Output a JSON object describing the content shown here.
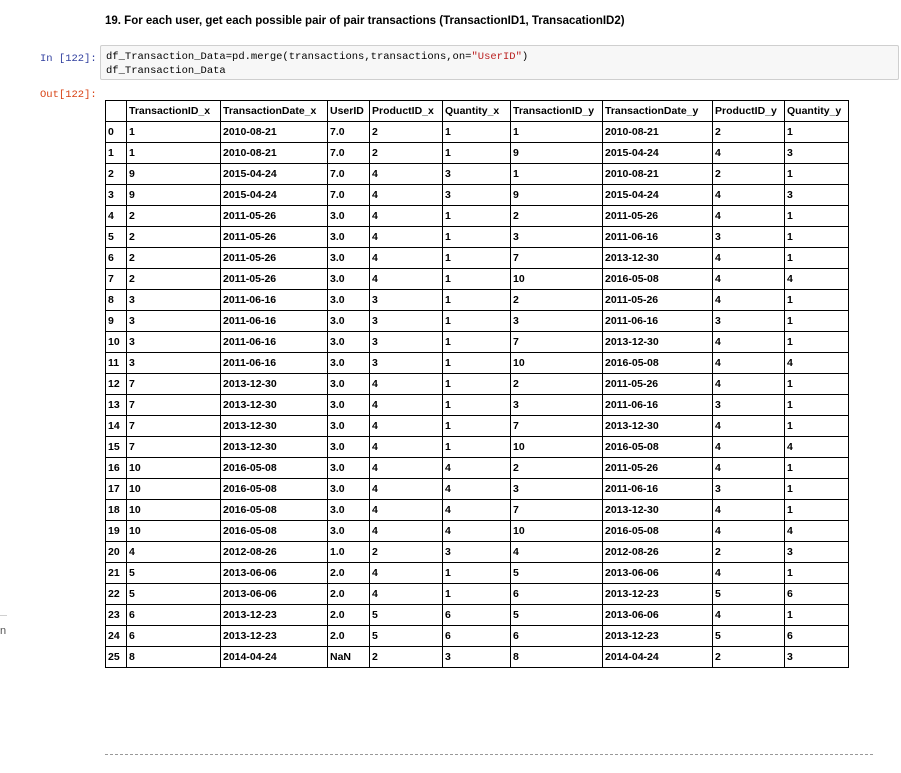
{
  "heading": "19. For each user, get each possible pair of pair transactions (TransactionID1, TransacationID2)",
  "in_prompt": "In [122]:",
  "out_prompt": "Out[122]:",
  "code": {
    "line1_pre": "df_Transaction_Data=pd.merge(transactions,transactions,on=",
    "line1_str": "\"UserID\"",
    "line1_post": ")",
    "line2": "df_Transaction_Data"
  },
  "edge_text": "n",
  "table": {
    "columns": [
      "TransactionID_x",
      "TransactionDate_x",
      "UserID",
      "ProductID_x",
      "Quantity_x",
      "TransactionID_y",
      "TransactionDate_y",
      "ProductID_y",
      "Quantity_y"
    ],
    "rows": [
      {
        "idx": "0",
        "cells": [
          "1",
          "2010-08-21",
          "7.0",
          "2",
          "1",
          "1",
          "2010-08-21",
          "2",
          "1"
        ]
      },
      {
        "idx": "1",
        "cells": [
          "1",
          "2010-08-21",
          "7.0",
          "2",
          "1",
          "9",
          "2015-04-24",
          "4",
          "3"
        ]
      },
      {
        "idx": "2",
        "cells": [
          "9",
          "2015-04-24",
          "7.0",
          "4",
          "3",
          "1",
          "2010-08-21",
          "2",
          "1"
        ]
      },
      {
        "idx": "3",
        "cells": [
          "9",
          "2015-04-24",
          "7.0",
          "4",
          "3",
          "9",
          "2015-04-24",
          "4",
          "3"
        ]
      },
      {
        "idx": "4",
        "cells": [
          "2",
          "2011-05-26",
          "3.0",
          "4",
          "1",
          "2",
          "2011-05-26",
          "4",
          "1"
        ]
      },
      {
        "idx": "5",
        "cells": [
          "2",
          "2011-05-26",
          "3.0",
          "4",
          "1",
          "3",
          "2011-06-16",
          "3",
          "1"
        ]
      },
      {
        "idx": "6",
        "cells": [
          "2",
          "2011-05-26",
          "3.0",
          "4",
          "1",
          "7",
          "2013-12-30",
          "4",
          "1"
        ]
      },
      {
        "idx": "7",
        "cells": [
          "2",
          "2011-05-26",
          "3.0",
          "4",
          "1",
          "10",
          "2016-05-08",
          "4",
          "4"
        ]
      },
      {
        "idx": "8",
        "cells": [
          "3",
          "2011-06-16",
          "3.0",
          "3",
          "1",
          "2",
          "2011-05-26",
          "4",
          "1"
        ]
      },
      {
        "idx": "9",
        "cells": [
          "3",
          "2011-06-16",
          "3.0",
          "3",
          "1",
          "3",
          "2011-06-16",
          "3",
          "1"
        ]
      },
      {
        "idx": "10",
        "cells": [
          "3",
          "2011-06-16",
          "3.0",
          "3",
          "1",
          "7",
          "2013-12-30",
          "4",
          "1"
        ]
      },
      {
        "idx": "11",
        "cells": [
          "3",
          "2011-06-16",
          "3.0",
          "3",
          "1",
          "10",
          "2016-05-08",
          "4",
          "4"
        ]
      },
      {
        "idx": "12",
        "cells": [
          "7",
          "2013-12-30",
          "3.0",
          "4",
          "1",
          "2",
          "2011-05-26",
          "4",
          "1"
        ]
      },
      {
        "idx": "13",
        "cells": [
          "7",
          "2013-12-30",
          "3.0",
          "4",
          "1",
          "3",
          "2011-06-16",
          "3",
          "1"
        ]
      },
      {
        "idx": "14",
        "cells": [
          "7",
          "2013-12-30",
          "3.0",
          "4",
          "1",
          "7",
          "2013-12-30",
          "4",
          "1"
        ]
      },
      {
        "idx": "15",
        "cells": [
          "7",
          "2013-12-30",
          "3.0",
          "4",
          "1",
          "10",
          "2016-05-08",
          "4",
          "4"
        ]
      },
      {
        "idx": "16",
        "cells": [
          "10",
          "2016-05-08",
          "3.0",
          "4",
          "4",
          "2",
          "2011-05-26",
          "4",
          "1"
        ]
      },
      {
        "idx": "17",
        "cells": [
          "10",
          "2016-05-08",
          "3.0",
          "4",
          "4",
          "3",
          "2011-06-16",
          "3",
          "1"
        ]
      },
      {
        "idx": "18",
        "cells": [
          "10",
          "2016-05-08",
          "3.0",
          "4",
          "4",
          "7",
          "2013-12-30",
          "4",
          "1"
        ]
      },
      {
        "idx": "19",
        "cells": [
          "10",
          "2016-05-08",
          "3.0",
          "4",
          "4",
          "10",
          "2016-05-08",
          "4",
          "4"
        ]
      },
      {
        "idx": "20",
        "cells": [
          "4",
          "2012-08-26",
          "1.0",
          "2",
          "3",
          "4",
          "2012-08-26",
          "2",
          "3"
        ]
      },
      {
        "idx": "21",
        "cells": [
          "5",
          "2013-06-06",
          "2.0",
          "4",
          "1",
          "5",
          "2013-06-06",
          "4",
          "1"
        ]
      },
      {
        "idx": "22",
        "cells": [
          "5",
          "2013-06-06",
          "2.0",
          "4",
          "1",
          "6",
          "2013-12-23",
          "5",
          "6"
        ]
      },
      {
        "idx": "23",
        "cells": [
          "6",
          "2013-12-23",
          "2.0",
          "5",
          "6",
          "5",
          "2013-06-06",
          "4",
          "1"
        ]
      },
      {
        "idx": "24",
        "cells": [
          "6",
          "2013-12-23",
          "2.0",
          "5",
          "6",
          "6",
          "2013-12-23",
          "5",
          "6"
        ]
      },
      {
        "idx": "25",
        "cells": [
          "8",
          "2014-04-24",
          "NaN",
          "2",
          "3",
          "8",
          "2014-04-24",
          "2",
          "3"
        ]
      }
    ]
  }
}
